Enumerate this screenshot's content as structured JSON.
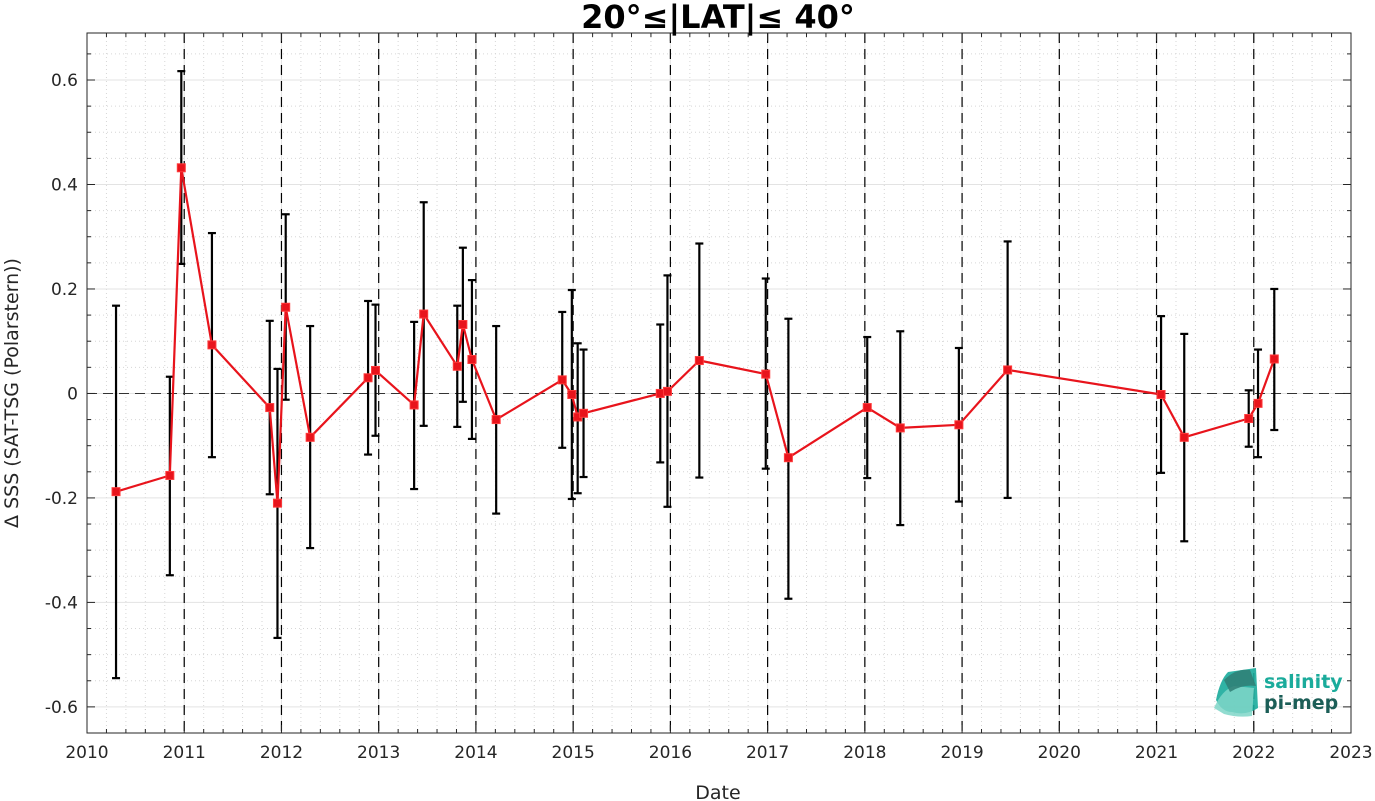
{
  "chart_data": {
    "type": "line",
    "title": "20°≤|LAT|≤ 40°",
    "xlabel": "Date",
    "ylabel": "Δ SSS (SAT-TSG (Polarstern))",
    "xlim": [
      "2010-01-01",
      "2023-01-01"
    ],
    "ylim": [
      -0.65,
      0.69
    ],
    "x_tick_labels": [
      "2010",
      "2011",
      "2012",
      "2013",
      "2014",
      "2015",
      "2016",
      "2017",
      "2018",
      "2019",
      "2020",
      "2021",
      "2022",
      "2023"
    ],
    "y_ticks": [
      -0.6,
      -0.4,
      -0.2,
      0,
      0.2,
      0.4,
      0.6
    ],
    "y_tick_labels": [
      "-0.6",
      "-0.4",
      "-0.2",
      "0",
      "0.2",
      "0.4",
      "0.6"
    ],
    "grid": true,
    "reference_line_y": 0,
    "year_boundary_lines": [
      "2011-01-01",
      "2012-01-01",
      "2013-01-01",
      "2014-01-01",
      "2015-01-01",
      "2016-01-01",
      "2017-01-01",
      "2018-01-01",
      "2019-01-01",
      "2020-01-01",
      "2021-01-01",
      "2022-01-01"
    ],
    "series": [
      {
        "color": "#e8141c",
        "errorbar_color": "#000000",
        "points": [
          {
            "x": "2010-04-20",
            "y": -0.188,
            "err_low": -0.545,
            "err_high": 0.168
          },
          {
            "x": "2010-11-08",
            "y": -0.157,
            "err_low": -0.348,
            "err_high": 0.032
          },
          {
            "x": "2010-12-21",
            "y": 0.432,
            "err_low": 0.248,
            "err_high": 0.617
          },
          {
            "x": "2011-04-15",
            "y": 0.093,
            "err_low": -0.122,
            "err_high": 0.307
          },
          {
            "x": "2011-11-18",
            "y": -0.027,
            "err_low": -0.193,
            "err_high": 0.139
          },
          {
            "x": "2011-12-17",
            "y": -0.21,
            "err_low": -0.468,
            "err_high": 0.047
          },
          {
            "x": "2012-01-17",
            "y": 0.165,
            "err_low": -0.012,
            "err_high": 0.343
          },
          {
            "x": "2012-04-18",
            "y": -0.084,
            "err_low": -0.296,
            "err_high": 0.129
          },
          {
            "x": "2012-11-22",
            "y": 0.03,
            "err_low": -0.117,
            "err_high": 0.177
          },
          {
            "x": "2012-12-20",
            "y": 0.044,
            "err_low": -0.081,
            "err_high": 0.17
          },
          {
            "x": "2013-05-14",
            "y": -0.022,
            "err_low": -0.183,
            "err_high": 0.137
          },
          {
            "x": "2013-06-19",
            "y": 0.152,
            "err_low": -0.062,
            "err_high": 0.366
          },
          {
            "x": "2013-10-23",
            "y": 0.052,
            "err_low": -0.064,
            "err_high": 0.168
          },
          {
            "x": "2013-11-13",
            "y": 0.132,
            "err_low": -0.016,
            "err_high": 0.279
          },
          {
            "x": "2013-12-17",
            "y": 0.065,
            "err_low": -0.087,
            "err_high": 0.217
          },
          {
            "x": "2014-03-18",
            "y": -0.05,
            "err_low": -0.23,
            "err_high": 0.129
          },
          {
            "x": "2014-11-21",
            "y": 0.026,
            "err_low": -0.104,
            "err_high": 0.156
          },
          {
            "x": "2014-12-27",
            "y": -0.002,
            "err_low": -0.202,
            "err_high": 0.198
          },
          {
            "x": "2015-01-18",
            "y": -0.045,
            "err_low": -0.191,
            "err_high": 0.096
          },
          {
            "x": "2015-02-09",
            "y": -0.038,
            "err_low": -0.16,
            "err_high": 0.084
          },
          {
            "x": "2015-11-24",
            "y": 0.0,
            "err_low": -0.132,
            "err_high": 0.132
          },
          {
            "x": "2015-12-21",
            "y": 0.004,
            "err_low": -0.217,
            "err_high": 0.226
          },
          {
            "x": "2016-04-19",
            "y": 0.063,
            "err_low": -0.161,
            "err_high": 0.287
          },
          {
            "x": "2016-12-25",
            "y": 0.037,
            "err_low": -0.144,
            "err_high": 0.22
          },
          {
            "x": "2017-03-20",
            "y": -0.123,
            "err_low": -0.393,
            "err_high": 0.143
          },
          {
            "x": "2018-01-10",
            "y": -0.027,
            "err_low": -0.162,
            "err_high": 0.108
          },
          {
            "x": "2018-05-14",
            "y": -0.066,
            "err_low": -0.252,
            "err_high": 0.119
          },
          {
            "x": "2018-12-20",
            "y": -0.06,
            "err_low": -0.207,
            "err_high": 0.087
          },
          {
            "x": "2019-06-21",
            "y": 0.045,
            "err_low": -0.2,
            "err_high": 0.291
          },
          {
            "x": "2021-01-18",
            "y": -0.002,
            "err_low": -0.152,
            "err_high": 0.148
          },
          {
            "x": "2021-04-15",
            "y": -0.084,
            "err_low": -0.283,
            "err_high": 0.114
          },
          {
            "x": "2021-12-13",
            "y": -0.048,
            "err_low": -0.102,
            "err_high": 0.006
          },
          {
            "x": "2022-01-17",
            "y": -0.019,
            "err_low": -0.122,
            "err_high": 0.084
          },
          {
            "x": "2022-03-19",
            "y": 0.066,
            "err_low": -0.07,
            "err_high": 0.2
          }
        ]
      }
    ]
  },
  "logo": {
    "line1": "salinity",
    "line2": "pi-mep",
    "color1": "#1aab9b",
    "color2": "#1c5e57"
  }
}
